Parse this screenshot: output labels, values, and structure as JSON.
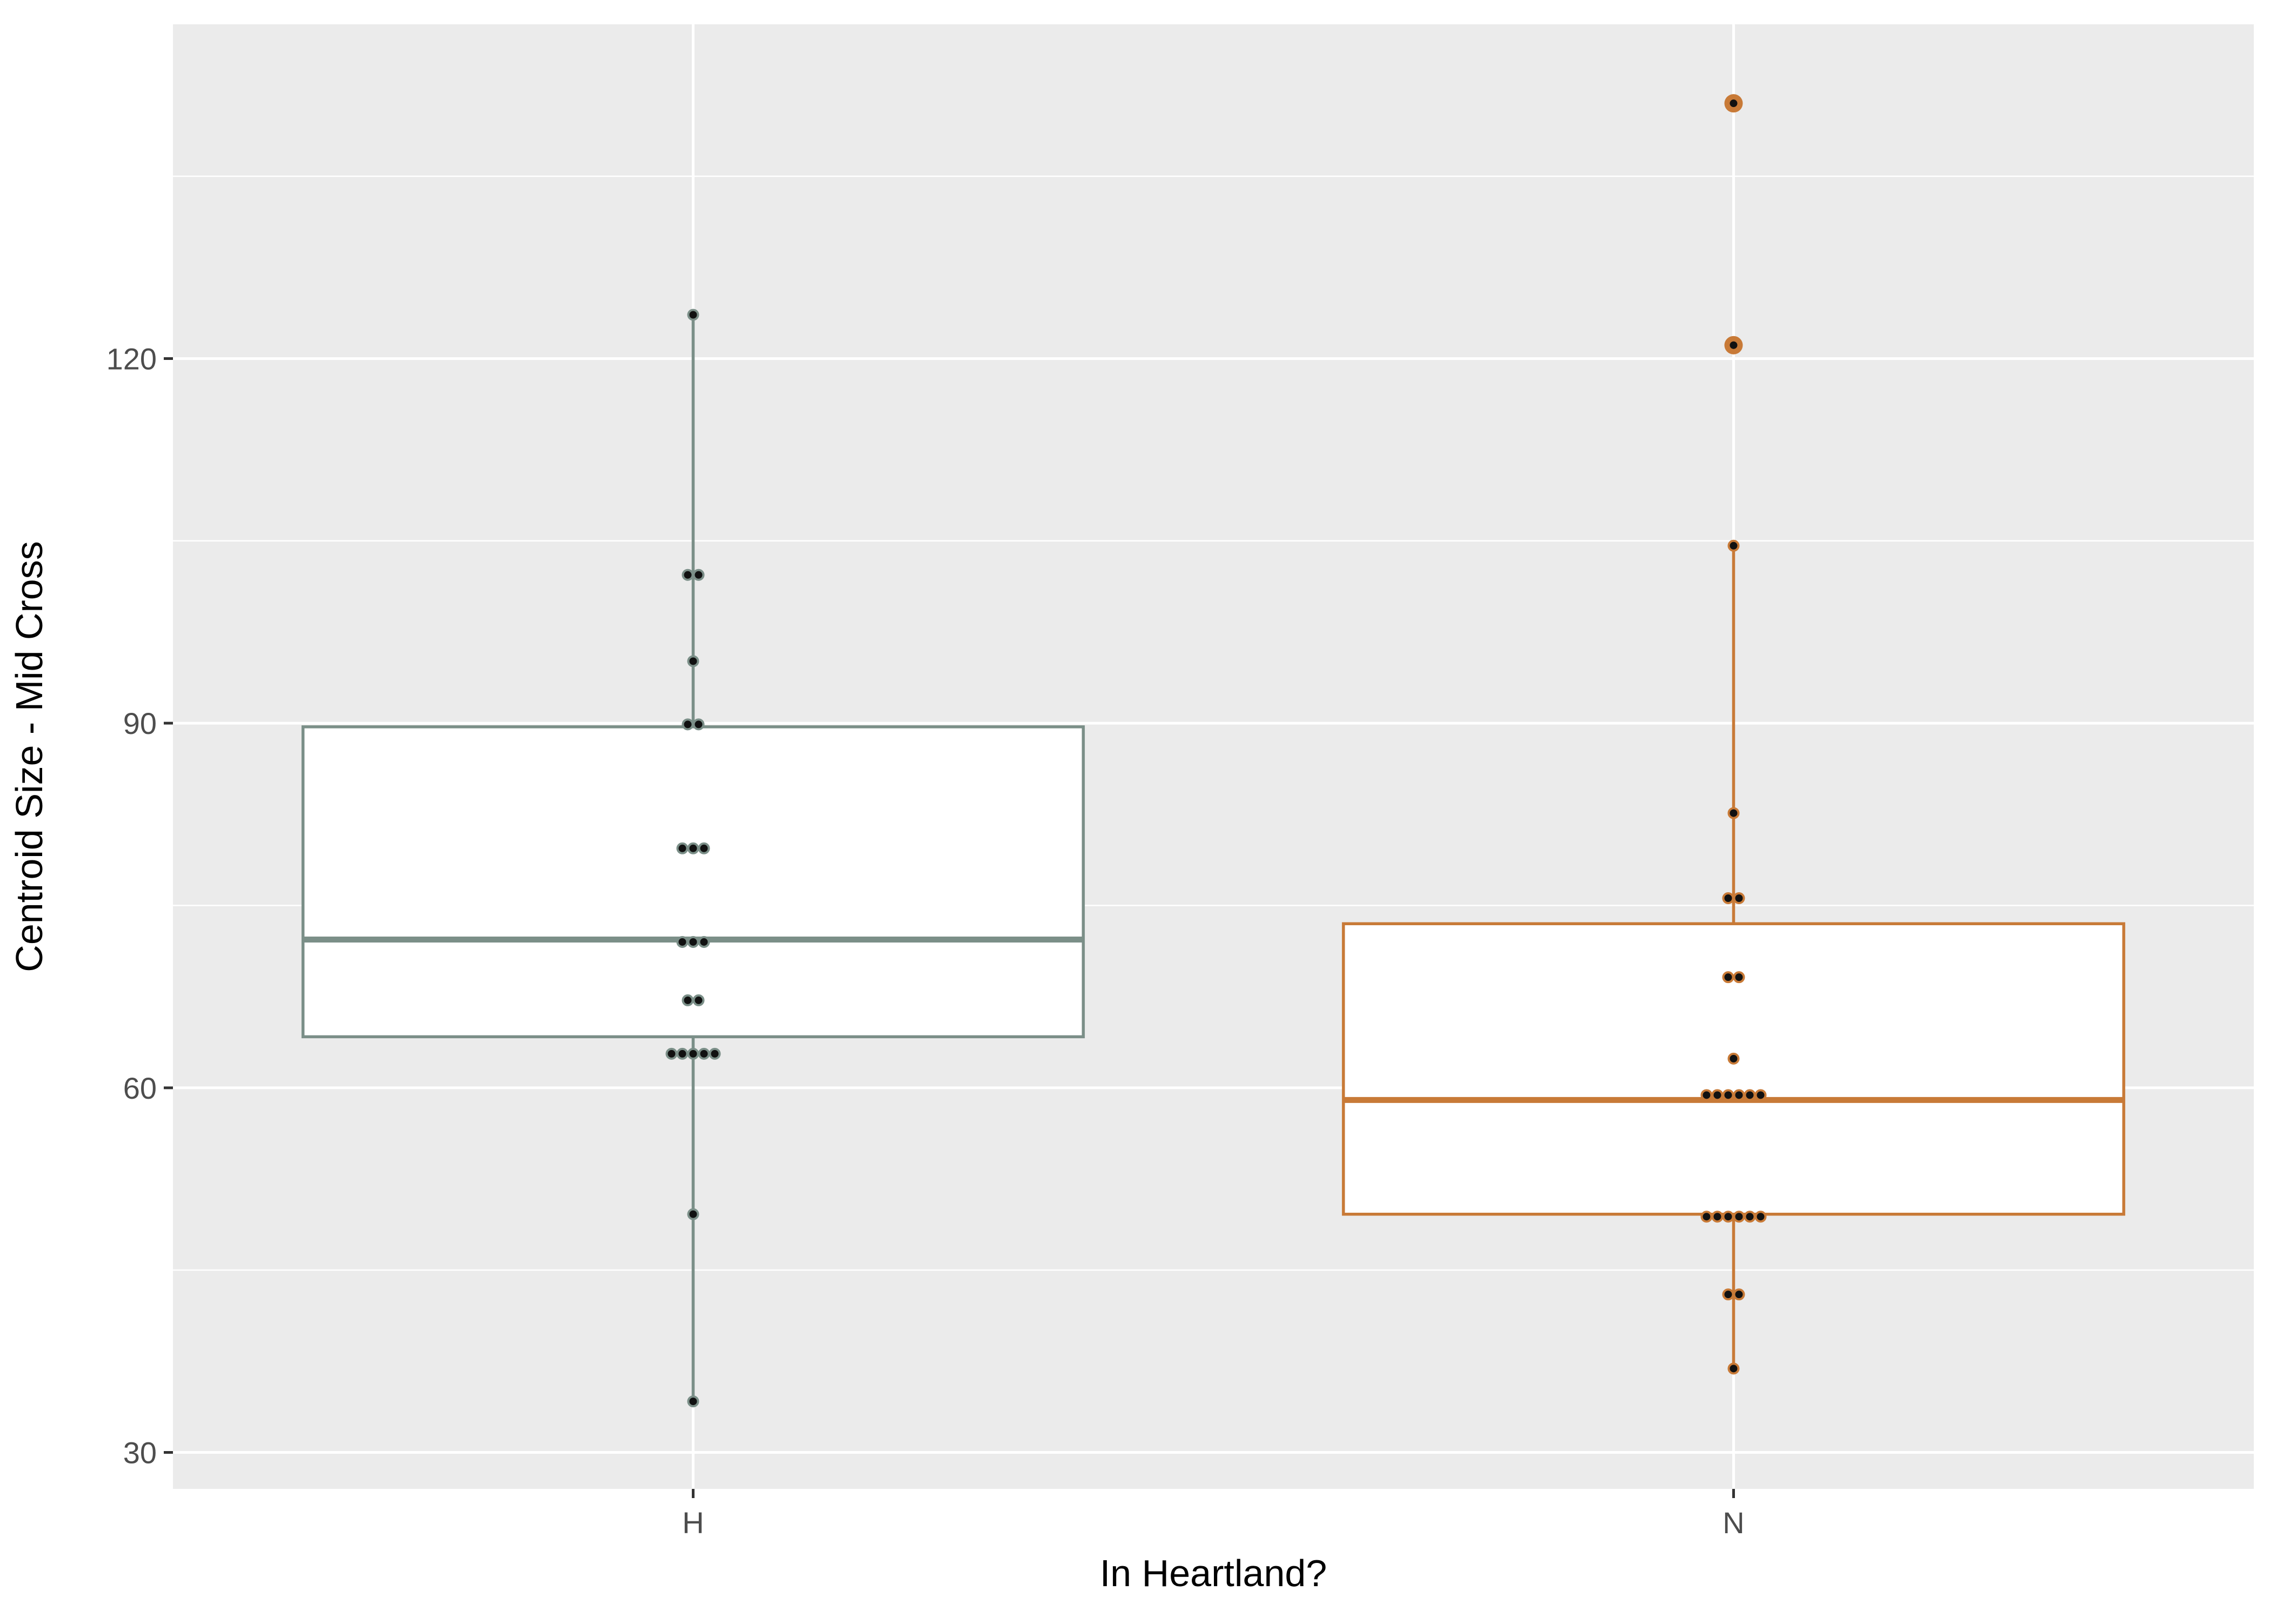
{
  "chart_data": {
    "type": "boxplot",
    "title": "",
    "xlabel": "In Heartland?",
    "ylabel": "Centroid Size - Mid Cross",
    "ylim": [
      27,
      147.5
    ],
    "yticks": [
      30,
      60,
      90,
      120
    ],
    "grid": true,
    "legend": "none",
    "colors": {
      "panel_background": "#ebebeb",
      "grid": "#ffffff",
      "H": "#7b8f88",
      "N": "#c87a37",
      "box_fill": "#ffffff"
    },
    "categories": [
      "H",
      "N"
    ],
    "boxes": [
      {
        "category": "H",
        "q1": 64.2,
        "median": 72.2,
        "q3": 89.7,
        "whisker_low": 34.2,
        "whisker_high": 123.6,
        "outliers": []
      },
      {
        "category": "N",
        "q1": 49.6,
        "median": 59.0,
        "q3": 73.5,
        "whisker_low": 36.9,
        "whisker_high": 104.6,
        "outliers": [
          121.1,
          141.0
        ]
      }
    ],
    "points": [
      {
        "category": "H",
        "values": [
          34.2,
          49.6,
          62.8,
          62.8,
          62.8,
          62.8,
          62.8,
          67.2,
          67.2,
          72.0,
          72.0,
          72.0,
          79.7,
          79.7,
          79.7,
          89.9,
          89.9,
          95.1,
          102.2,
          102.2,
          123.6
        ]
      },
      {
        "category": "N",
        "values": [
          36.9,
          43.0,
          43.0,
          49.4,
          49.4,
          49.4,
          49.4,
          49.4,
          49.4,
          59.4,
          59.4,
          59.4,
          59.4,
          59.4,
          59.4,
          62.4,
          69.1,
          69.1,
          75.6,
          75.6,
          82.6,
          104.6,
          121.1,
          141.0
        ]
      }
    ]
  }
}
